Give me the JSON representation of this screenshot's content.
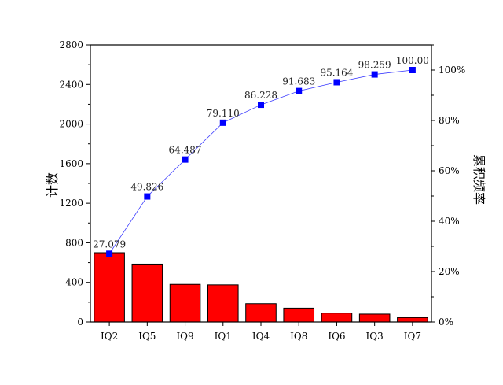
{
  "chart_data": {
    "type": "bar",
    "categories": [
      "IQ2",
      "IQ5",
      "IQ9",
      "IQ1",
      "IQ4",
      "IQ8",
      "IQ6",
      "IQ3",
      "IQ7"
    ],
    "series": [
      {
        "values": [
          700,
          585,
          380,
          375,
          185,
          140,
          90,
          80,
          45
        ],
        "type": "bar",
        "color": "#ff0000",
        "axis": "left"
      },
      {
        "values": [
          27.079,
          49.826,
          64.487,
          79.11,
          86.228,
          91.683,
          95.164,
          98.259,
          100.0
        ],
        "type": "line",
        "color": "#0000ff",
        "marker": "square",
        "axis": "right"
      }
    ],
    "data_labels": [
      "27.079",
      "49.826",
      "64.487",
      "79.110",
      "86.228",
      "91.683",
      "95.164",
      "98.259",
      "100.00"
    ],
    "ylabel": "计数",
    "y2label": "累积频率",
    "ylim": [
      0,
      2800
    ],
    "y2lim": [
      0,
      110
    ],
    "yticks": [
      "0",
      "400",
      "800",
      "1200",
      "1600",
      "2000",
      "2400",
      "2800"
    ],
    "y2ticks": [
      "0%",
      "20%",
      "40%",
      "60%",
      "80%",
      "100%"
    ],
    "grid": false,
    "legend": false
  }
}
